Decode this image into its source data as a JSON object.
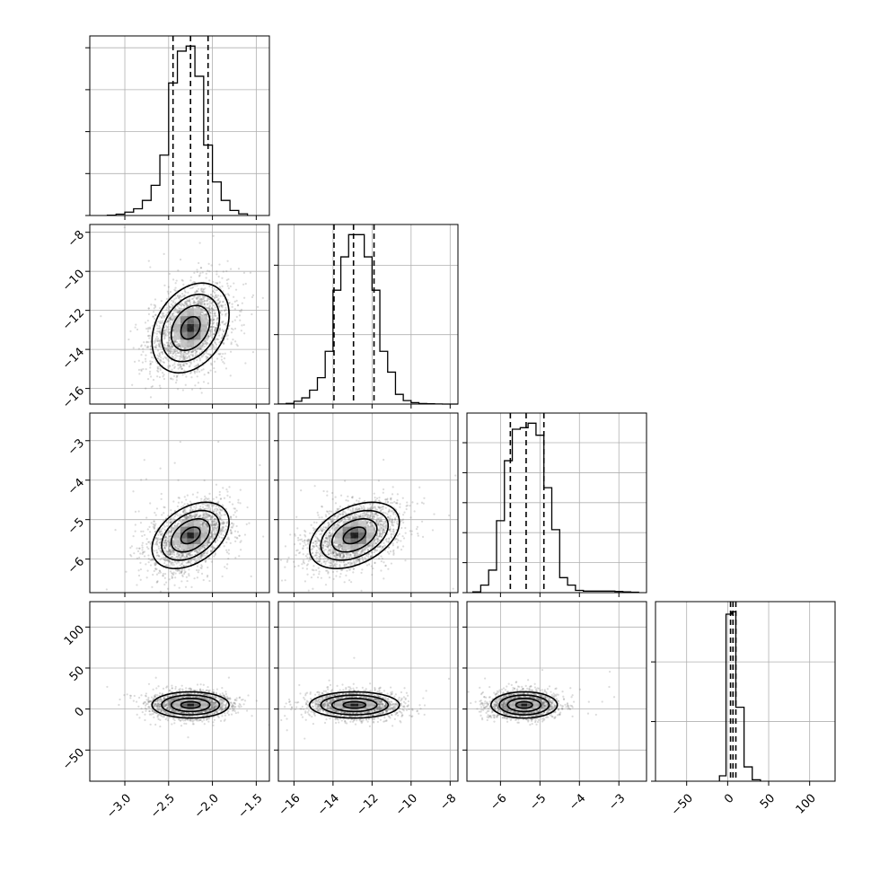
{
  "chart_data": {
    "type": "corner",
    "title": "",
    "parameters": [
      {
        "label": "",
        "range": [
          -3.4,
          -1.35
        ],
        "ticks": [
          -3.0,
          -2.5,
          -2.0,
          -1.5
        ],
        "tick_labels": [
          "−3.0",
          "−2.5",
          "−2.0",
          "−1.5"
        ],
        "quantiles": [
          -2.45,
          -2.25,
          -2.05
        ],
        "histogram": {
          "edges": [
            -3.2,
            -3.1,
            -3.0,
            -2.9,
            -2.8,
            -2.7,
            -2.6,
            -2.5,
            -2.4,
            -2.3,
            -2.2,
            -2.1,
            -2.0,
            -1.9,
            -1.8,
            -1.7,
            -1.6
          ],
          "counts": [
            2,
            8,
            20,
            40,
            90,
            180,
            360,
            790,
            980,
            1010,
            830,
            420,
            200,
            90,
            30,
            10
          ]
        },
        "hist_ticks": [
          0,
          250,
          500,
          750,
          1000
        ]
      },
      {
        "label": "",
        "range": [
          -16.8,
          -7.6
        ],
        "ticks": [
          -16,
          -14,
          -12,
          -10,
          -8
        ],
        "tick_labels": [
          "−16",
          "−14",
          "−12",
          "−10",
          "−8"
        ],
        "quantiles": [
          -13.95,
          -12.95,
          -11.9
        ],
        "histogram": {
          "edges": [
            -16.8,
            -16.4,
            -16.0,
            -15.6,
            -15.2,
            -14.8,
            -14.4,
            -14.0,
            -13.6,
            -13.2,
            -12.8,
            -12.4,
            -12.0,
            -11.6,
            -11.2,
            -10.8,
            -10.4,
            -10.0,
            -9.6,
            -9.2,
            -8.8,
            -8.4,
            -8.0,
            -7.6
          ],
          "counts": [
            1,
            5,
            20,
            45,
            100,
            190,
            380,
            820,
            1060,
            1220,
            1220,
            1060,
            820,
            380,
            230,
            70,
            25,
            10,
            4,
            2,
            1,
            0,
            0
          ]
        },
        "hist_ticks": [
          0,
          500,
          1000
        ]
      },
      {
        "label": "",
        "range": [
          -6.85,
          -2.3
        ],
        "ticks": [
          -6,
          -5,
          -4,
          -3
        ],
        "tick_labels": [
          "−6",
          "−5",
          "−4",
          "−3"
        ],
        "quantiles": [
          -5.75,
          -5.35,
          -4.9
        ],
        "histogram": {
          "edges": [
            -6.7,
            -6.5,
            -6.3,
            -6.1,
            -5.9,
            -5.7,
            -5.5,
            -5.3,
            -5.1,
            -4.9,
            -4.7,
            -4.5,
            -4.3,
            -4.1,
            -3.9,
            -3.7,
            -3.5,
            -3.3,
            -3.1,
            -2.9,
            -2.7,
            -2.5
          ],
          "counts": [
            5,
            50,
            150,
            480,
            880,
            1090,
            1100,
            1130,
            1050,
            700,
            420,
            100,
            50,
            15,
            10,
            10,
            10,
            10,
            8,
            5,
            3
          ]
        },
        "hist_ticks": [
          0,
          200,
          400,
          600,
          800,
          1000
        ]
      },
      {
        "label": "",
        "range": [
          -88,
          131
        ],
        "ticks": [
          -50,
          0,
          50,
          100
        ],
        "tick_labels": [
          "−50",
          "0",
          "50",
          "100"
        ],
        "quantiles": [
          3.5,
          6.5,
          10
        ],
        "histogram": {
          "edges": [
            -10,
            -2,
            5,
            10,
            20,
            30,
            40
          ],
          "counts": [
            45,
            1400,
            1420,
            620,
            120,
            12
          ]
        },
        "hist_ticks": [
          0,
          500,
          1000
        ]
      }
    ],
    "joint": [
      {
        "pair": [
          0,
          1
        ],
        "mean": [
          -2.25,
          -12.9
        ],
        "std": [
          0.22,
          1.15
        ],
        "rho": 0.3
      },
      {
        "pair": [
          0,
          2
        ],
        "mean": [
          -2.25,
          -5.4
        ],
        "std": [
          0.22,
          0.42
        ],
        "rho": 0.4
      },
      {
        "pair": [
          1,
          2
        ],
        "mean": [
          -12.9,
          -5.4
        ],
        "std": [
          1.15,
          0.42
        ],
        "rho": 0.4
      },
      {
        "pair": [
          0,
          3
        ],
        "mean": [
          -2.25,
          5
        ],
        "std": [
          0.22,
          8
        ],
        "rho": 0
      },
      {
        "pair": [
          1,
          3
        ],
        "mean": [
          -12.9,
          5
        ],
        "std": [
          1.15,
          8
        ],
        "rho": 0
      },
      {
        "pair": [
          2,
          3
        ],
        "mean": [
          -5.4,
          5
        ],
        "std": [
          0.42,
          8
        ],
        "rho": 0
      }
    ],
    "contour_levels_sigma": [
      0.5,
      1.0,
      1.5,
      2.0
    ],
    "grid": true,
    "colors": {
      "line": "#000000",
      "grid": "#b0b0b0",
      "points": "#6e6e6e",
      "frame": "#000000"
    }
  }
}
